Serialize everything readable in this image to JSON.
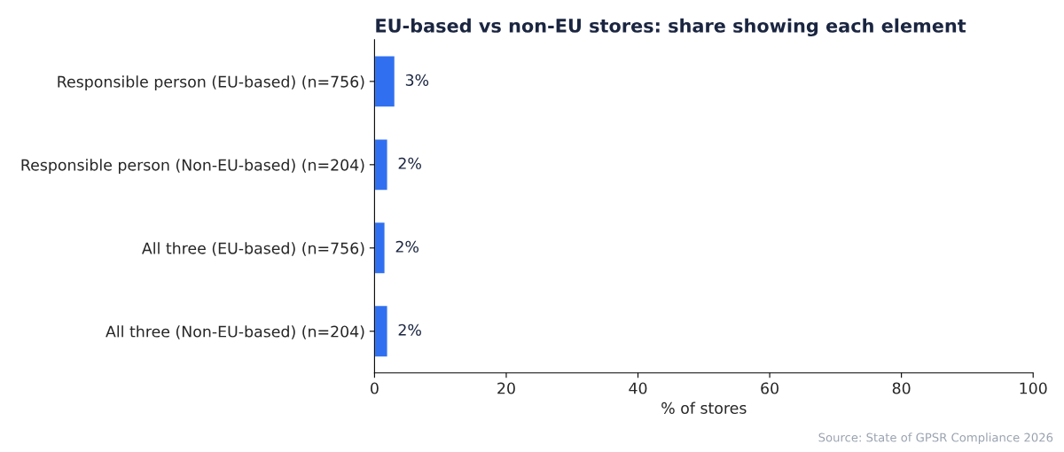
{
  "chart_data": {
    "type": "bar",
    "orientation": "horizontal",
    "title": "EU-based vs non-EU stores: share showing each element",
    "xlabel": "% of stores",
    "categories": [
      "Responsible person (EU-based) (n=756)",
      "Responsible person (Non-EU-based) (n=204)",
      "All three (EU-based) (n=756)",
      "All three (Non-EU-based) (n=204)"
    ],
    "values": [
      3.1,
      2.0,
      1.6,
      2.0
    ],
    "value_labels": [
      "3%",
      "2%",
      "2%",
      "2%"
    ],
    "color": "#3070f0",
    "xlim": [
      0,
      100
    ],
    "xticks": [
      0,
      20,
      40,
      60,
      80,
      100
    ],
    "grid": false,
    "annotations": [
      "Source: State of GPSR Compliance 2026"
    ]
  }
}
